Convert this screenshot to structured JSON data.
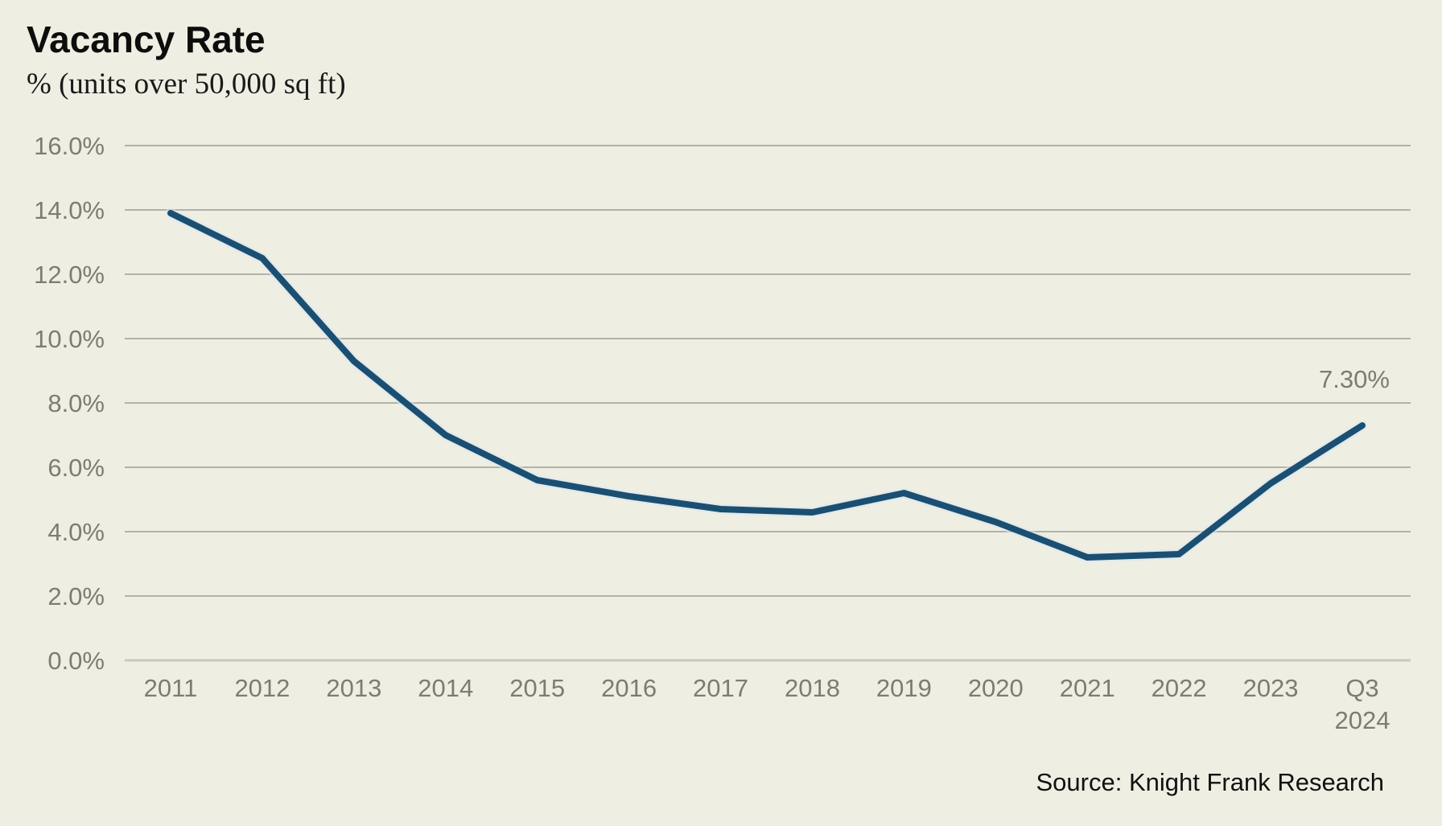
{
  "page": {
    "background": "#EFEEE2"
  },
  "header": {
    "title": "Vacancy Rate",
    "subtitle": "% (units over 50,000 sq ft)"
  },
  "source": {
    "text": "Source: Knight Frank Research"
  },
  "chart_data": {
    "type": "line",
    "title": "Vacancy Rate",
    "subtitle": "% (units over 50,000 sq ft)",
    "categories": [
      "2011",
      "2012",
      "2013",
      "2014",
      "2015",
      "2016",
      "2017",
      "2018",
      "2019",
      "2020",
      "2021",
      "2022",
      "2023",
      "Q3 2024"
    ],
    "values": [
      13.9,
      12.5,
      9.3,
      7.0,
      5.6,
      5.1,
      4.7,
      4.6,
      5.2,
      4.3,
      3.2,
      3.3,
      5.5,
      7.3
    ],
    "last_point_label": "7.30%",
    "xlabel": "",
    "ylabel": "%",
    "ylim": [
      0,
      16
    ],
    "ytick_step": 2,
    "ytick_suffix": "%",
    "grid": true,
    "legend": "none",
    "colors": {
      "line": "#1B4F72",
      "line_halo": "#D9E8F2",
      "gridline": "#8F8F88",
      "baseline": "#C9C9BD",
      "axis_label": "#7C7C74",
      "point_label": "#7C7C74"
    }
  }
}
